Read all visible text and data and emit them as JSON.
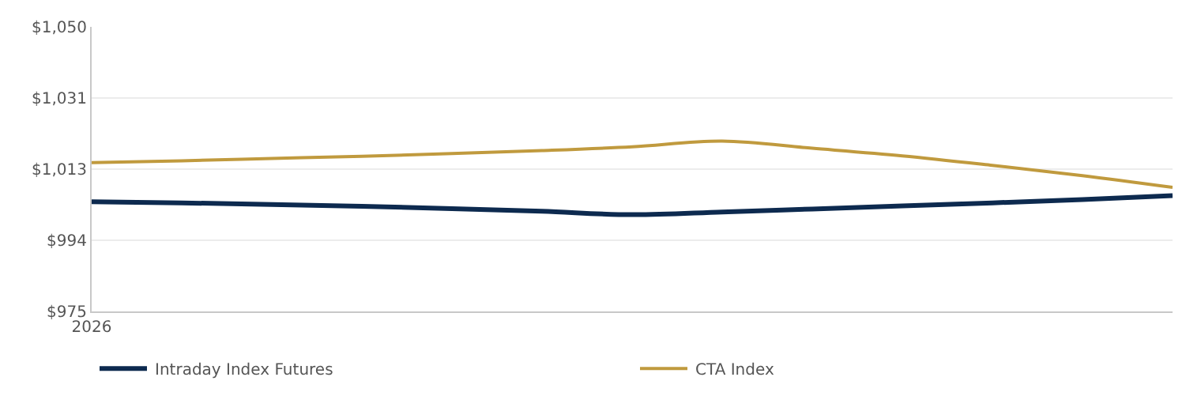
{
  "chart_data": {
    "type": "line",
    "categories": [
      "2026",
      null,
      null,
      null,
      null,
      null,
      null,
      null,
      null,
      null,
      null,
      null,
      null
    ],
    "series": [
      {
        "name": "Intraday Index Futures",
        "color": "#0d2a4f",
        "values": [
          1003.9,
          1003.6,
          1003.2,
          1002.7,
          1002.1,
          1001.4,
          1000.5,
          1001.2,
          1002.0,
          1002.8,
          1003.6,
          1004.5,
          1005.5
        ]
      },
      {
        "name": "CTA Index",
        "color": "#c09a3e",
        "values": [
          1014.2,
          1014.7,
          1015.3,
          1015.9,
          1016.6,
          1017.4,
          1018.4,
          1019.9,
          1018.0,
          1016.0,
          1013.5,
          1010.8,
          1007.7
        ]
      }
    ],
    "ylim": [
      975,
      1050
    ],
    "yticks": [
      {
        "value": 975,
        "label": "$975"
      },
      {
        "value": 993.75,
        "label": "$994"
      },
      {
        "value": 1012.5,
        "label": "$1,013"
      },
      {
        "value": 1031.25,
        "label": "$1,031"
      },
      {
        "value": 1050,
        "label": "$1,050"
      }
    ],
    "grid": "y",
    "legend": "bottom",
    "marker": "none",
    "line_style": "solid"
  }
}
